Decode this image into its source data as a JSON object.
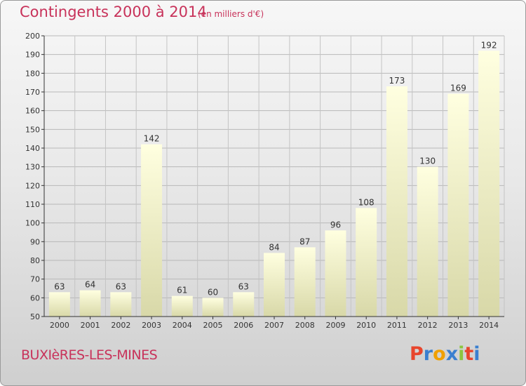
{
  "header": {
    "title": "Contingents 2000 à 2014",
    "subtitle": "(en milliers d'€)"
  },
  "footer": {
    "place": "BUXIèRES-LES-MINES",
    "logo": "Proxiti"
  },
  "colors": {
    "accent": "#c8325a",
    "bar_top": "#ffffe0",
    "bar_bottom": "#d8d8a8",
    "logo_letters": [
      "#e8452c",
      "#3a7fd0",
      "#f0a000",
      "#3a7fd0",
      "#8cc63f",
      "#e8452c",
      "#3a7fd0"
    ]
  },
  "chart_data": {
    "type": "bar",
    "title": "Contingents 2000 à 2014",
    "subtitle": "(en milliers d'€)",
    "categories": [
      "2000",
      "2001",
      "2002",
      "2003",
      "2004",
      "2005",
      "2006",
      "2007",
      "2008",
      "2009",
      "2010",
      "2011",
      "2012",
      "2013",
      "2014"
    ],
    "values": [
      63,
      64,
      63,
      142,
      61,
      60,
      63,
      84,
      87,
      96,
      108,
      173,
      130,
      169,
      192
    ],
    "ylim": [
      50,
      200
    ],
    "yticks": [
      50,
      60,
      70,
      80,
      90,
      100,
      110,
      120,
      130,
      140,
      150,
      160,
      170,
      180,
      190,
      200
    ],
    "grid": true,
    "data_labels": true,
    "xlabel": "",
    "ylabel": ""
  }
}
